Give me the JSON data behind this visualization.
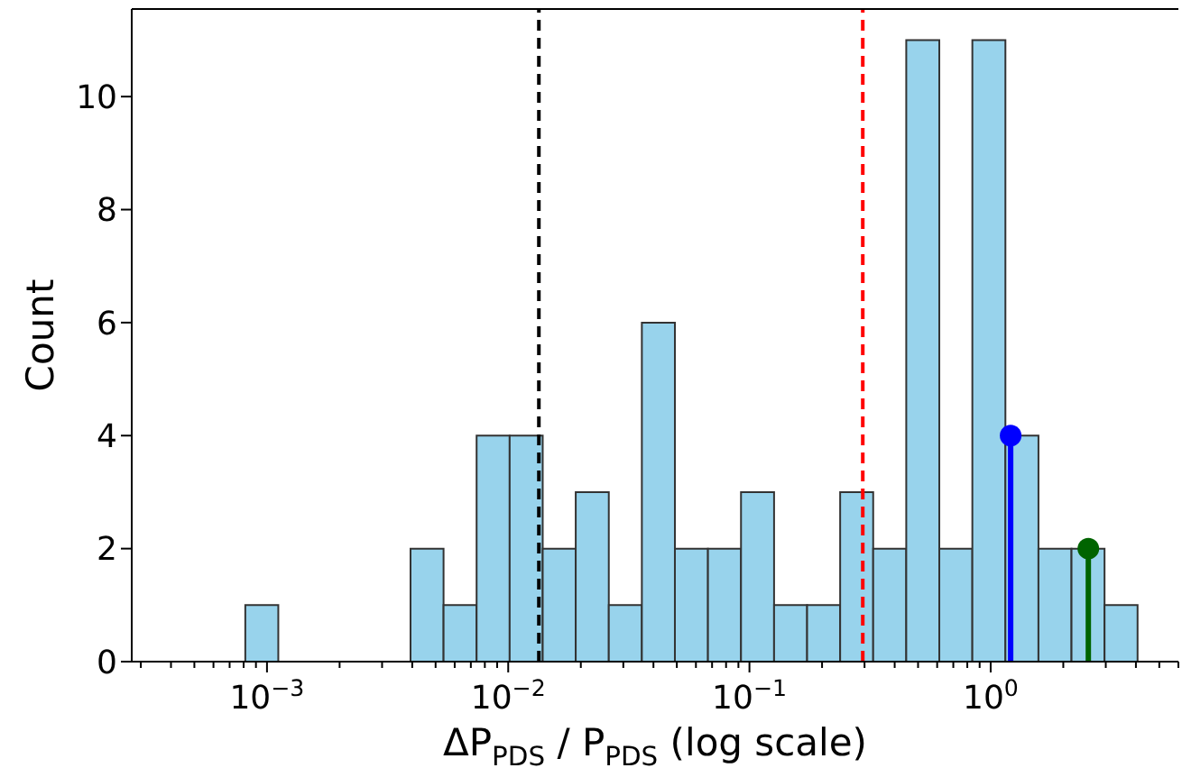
{
  "chart_data": {
    "type": "histogram",
    "xlabel": "ΔP$_{PDS}$ / P$_{PDS}$ (log scale)",
    "ylabel": "Count",
    "color": "#98d3ec",
    "log": "x",
    "bins": [
      0.000813,
      0.001114,
      0.001528,
      0.002094,
      0.002871,
      0.003936,
      0.005395,
      0.007396,
      0.01014,
      0.0139,
      0.01905,
      0.02612,
      0.03581,
      0.04909,
      0.0673,
      0.09226,
      0.1265,
      0.1734,
      0.2377,
      0.3258,
      0.4467,
      0.6124,
      0.8395,
      1.151,
      1.578,
      2.163,
      2.965,
      4.064
    ],
    "values": [
      1,
      0,
      0,
      0,
      0,
      2,
      1,
      4,
      4,
      2,
      3,
      1,
      6,
      2,
      2,
      3,
      1,
      1,
      3,
      2,
      11,
      2,
      11,
      4,
      2,
      2,
      1
    ],
    "series": [
      {
        "type": "lollipop",
        "color": "#0000ff",
        "x": [
          1.21
        ],
        "values": [
          4
        ]
      },
      {
        "type": "lollipop",
        "color": "#006400",
        "x": [
          2.54
        ],
        "values": [
          2
        ]
      }
    ],
    "ref_lines": [
      {
        "axis": "x",
        "value": 0.0134,
        "color": "#000000",
        "line_style": "dashed"
      },
      {
        "axis": "x",
        "value": 0.295,
        "color": "#ff0000",
        "line_style": "dashed"
      }
    ],
    "xlim": [
      0.000275,
      6
    ],
    "xticks": [
      {
        "value": 0.0003,
        "label": null
      },
      {
        "value": 0.0004,
        "label": null
      },
      {
        "value": 0.0005,
        "label": null
      },
      {
        "value": 0.0006,
        "label": null
      },
      {
        "value": 0.0007,
        "label": null
      },
      {
        "value": 0.0008,
        "label": null
      },
      {
        "value": 0.0009,
        "label": null
      },
      {
        "value": 0.001,
        "label": "10$^{−3}$"
      },
      {
        "value": 0.002,
        "label": null
      },
      {
        "value": 0.003,
        "label": null
      },
      {
        "value": 0.004,
        "label": null
      },
      {
        "value": 0.005,
        "label": null
      },
      {
        "value": 0.006,
        "label": null
      },
      {
        "value": 0.007,
        "label": null
      },
      {
        "value": 0.008,
        "label": null
      },
      {
        "value": 0.009,
        "label": null
      },
      {
        "value": 0.01,
        "label": "10$^{−2}$"
      },
      {
        "value": 0.02,
        "label": null
      },
      {
        "value": 0.03,
        "label": null
      },
      {
        "value": 0.04,
        "label": null
      },
      {
        "value": 0.05,
        "label": null
      },
      {
        "value": 0.06,
        "label": null
      },
      {
        "value": 0.07,
        "label": null
      },
      {
        "value": 0.08,
        "label": null
      },
      {
        "value": 0.09,
        "label": null
      },
      {
        "value": 0.1,
        "label": "10$^{−1}$"
      },
      {
        "value": 0.2,
        "label": null
      },
      {
        "value": 0.3,
        "label": null
      },
      {
        "value": 0.4,
        "label": null
      },
      {
        "value": 0.5,
        "label": null
      },
      {
        "value": 0.6,
        "label": null
      },
      {
        "value": 0.7,
        "label": null
      },
      {
        "value": 0.8,
        "label": null
      },
      {
        "value": 0.9,
        "label": null
      },
      {
        "value": 1,
        "label": "10$^{0}$"
      },
      {
        "value": 2,
        "label": null
      },
      {
        "value": 3,
        "label": null
      },
      {
        "value": 4,
        "label": null
      },
      {
        "value": 5,
        "label": null
      },
      {
        "value": 6,
        "label": null
      }
    ],
    "ylim": [
      0,
      11.55
    ],
    "yticks": [
      0,
      2,
      4,
      6,
      8,
      10
    ]
  }
}
